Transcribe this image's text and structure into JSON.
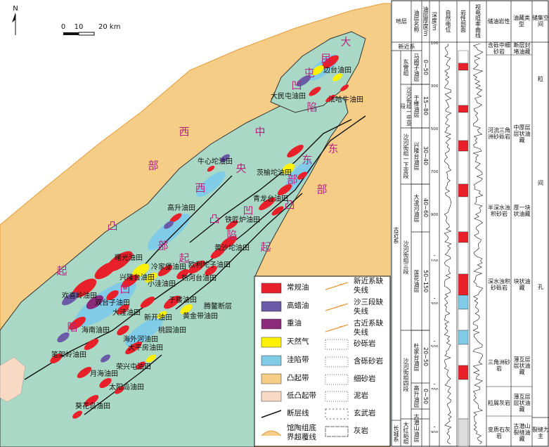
{
  "map": {
    "north": "N",
    "scale_labels": [
      "0",
      "10",
      "20 km"
    ],
    "fields": [
      "边台油田",
      "大民屯油田",
      "法哈牛油田",
      "牛心坨油田",
      "茨榆坨油田",
      "青龙台油田",
      "高升油田",
      "铁匠炉油田",
      "黄沙坨油田",
      "曙光油田",
      "冷家堡油田",
      "欧利坨子油田",
      "兴隆台油田",
      "小洼油田",
      "热河台油田",
      "欢喜岭油田",
      "双台子油田",
      "于楼油田",
      "大洼油田",
      "新开油田",
      "黄金带油田",
      "桃园油田",
      "海南油田",
      "海外河油田",
      "大平房油田",
      "笔架岭油田",
      "荣兴屯油田",
      "月海油田",
      "太阳岛油田",
      "葵花岛油田"
    ],
    "units": [
      [
        "大",
        "民",
        "屯",
        "凹",
        "陷"
      ],
      [
        "西",
        "部",
        "凸",
        "起"
      ],
      [
        "中",
        "央",
        "凸",
        "起"
      ],
      [
        "西",
        "部",
        "凹",
        "陷"
      ],
      [
        "东",
        "部",
        "凹",
        "陷"
      ],
      [
        "东",
        "部",
        "凸",
        "起"
      ]
    ],
    "fault_name": "腾鳌断层",
    "legend": [
      "常规油",
      "高蜡油",
      "重油",
      "天然气",
      "洼陷带",
      "凸起带",
      "低凸起带",
      "断层线",
      "馆陶组底界超覆线",
      "新近系缺失线",
      "沙三段缺失线",
      "古近系缺失线",
      "砂砾岩",
      "含砾砂岩",
      "细砂岩",
      "泥岩",
      "玄武岩",
      "灰岩"
    ]
  },
  "column": {
    "headers": [
      "地层",
      "油层名称",
      "油层厚度/m",
      "深度/m",
      "自然电位",
      "岩性剖面",
      "视电阻率曲线",
      "储油岩性",
      "油藏类型",
      "储集空间"
    ],
    "systems": [
      "新近系",
      "古近系",
      "长城系"
    ],
    "formations": [
      "东营组",
      "沙河街组一中亚段",
      "沙河街组一下亚段",
      "沙河街组三段",
      "沙河街组四段",
      "大红峪组"
    ],
    "oil_layers": [
      "马圈子油层",
      "于楼油层",
      "兴隆台油层",
      "大凌河油层",
      "莲花油层",
      "杜家台油层",
      "高升油层",
      "古潜山油层"
    ],
    "thickness": [
      "0~50",
      "15~80",
      "30~40",
      "40~60",
      "50~150",
      "20~50",
      "0~50"
    ],
    "depths": [
      "100",
      "300",
      "500",
      "700",
      "900",
      "1 100",
      "1 300",
      "1 500",
      "1 700",
      "1 900"
    ],
    "reservoir_rocks": [
      "含砾中细砂岩",
      "河流三角洲砂砾岩",
      "半深水浊积砂岩",
      "深水浊积砂砾岩",
      "三角洲砂岩",
      "粒屑灰岩",
      "变质石灰岩"
    ],
    "reservoir_types": [
      "断层封堵油藏",
      "中厚层层状油藏",
      "厚一块状油藏",
      "块状油藏",
      "薄互层层状油藏",
      "薄互层层状油藏",
      "古潜山裂缝油藏"
    ],
    "storage": [
      "粒间孔",
      "裂缝为主"
    ]
  }
}
